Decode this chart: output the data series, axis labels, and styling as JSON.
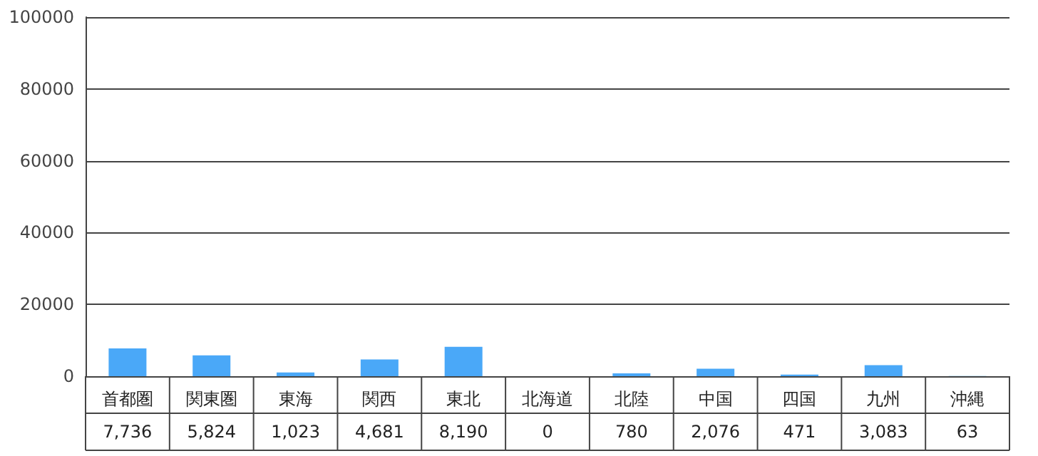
{
  "chart_data": {
    "type": "bar",
    "categories": [
      "首都圏",
      "関東圏",
      "東海",
      "関西",
      "東北",
      "北海道",
      "北陸",
      "中国",
      "四国",
      "九州",
      "沖縄"
    ],
    "values": [
      7736,
      5824,
      1023,
      4681,
      8190,
      0,
      780,
      2076,
      471,
      3083,
      63
    ],
    "color": "#4aa8f8",
    "ylim": [
      0,
      100000
    ],
    "yticks": [
      0,
      20000,
      40000,
      60000,
      80000,
      100000
    ],
    "value_labels": [
      "7,736",
      "5,824",
      "1,023",
      "4,681",
      "8,190",
      "0",
      "780",
      "2,076",
      "471",
      "3,083",
      "63"
    ],
    "grid": "y"
  }
}
